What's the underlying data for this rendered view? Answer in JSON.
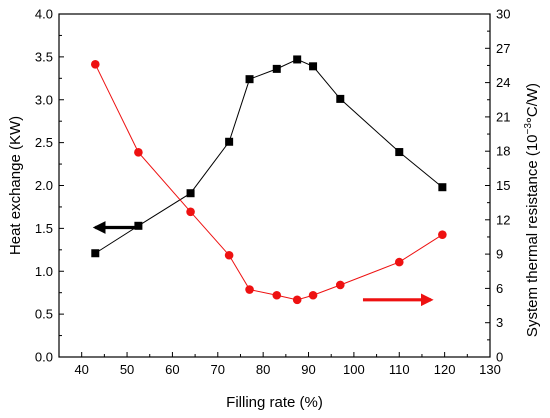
{
  "chart_data": {
    "type": "line",
    "xlabel": "Filling rate (%)",
    "ylabel_left": "Heat exchange (KW)",
    "ylabel_right_main": "System thermal resistance  (10",
    "ylabel_right_sup": "−3",
    "ylabel_right_unit": "°C/W)",
    "xlim": [
      35,
      130
    ],
    "ylim_left": [
      0,
      4.0
    ],
    "ylim_right": [
      0,
      30
    ],
    "xticks": [
      "40",
      "50",
      "60",
      "70",
      "80",
      "90",
      "100",
      "110",
      "120",
      "130"
    ],
    "yticks_left": [
      "0.0",
      "0.5",
      "1.0",
      "1.5",
      "2.0",
      "2.5",
      "3.0",
      "3.5",
      "4.0"
    ],
    "yticks_right": [
      "0",
      "3",
      "6",
      "9",
      "12",
      "15",
      "18",
      "21",
      "24",
      "27",
      "30"
    ],
    "grid": false,
    "series": [
      {
        "axis": "left",
        "color": "#000000",
        "marker": "square",
        "x": [
          43,
          52.5,
          64,
          72.5,
          77,
          83,
          87.5,
          91,
          97,
          110,
          119.5
        ],
        "y": [
          1.21,
          1.53,
          1.91,
          2.51,
          3.24,
          3.36,
          3.47,
          3.39,
          3.01,
          2.39,
          1.98
        ]
      },
      {
        "axis": "right",
        "color": "#ee1111",
        "marker": "circle",
        "x": [
          43,
          52.5,
          64,
          72.5,
          77,
          83,
          87.5,
          91,
          97,
          110,
          119.5
        ],
        "y": [
          25.6,
          17.9,
          12.7,
          8.9,
          5.9,
          5.4,
          5.0,
          5.4,
          6.3,
          8.3,
          10.7
        ]
      }
    ],
    "annotations": [
      {
        "type": "arrow",
        "direction": "left",
        "color": "#000000",
        "points_to": "left axis",
        "x": [
          43,
          52.5
        ],
        "y_left": 1.51
      },
      {
        "type": "arrow",
        "direction": "right",
        "color": "#ee1111",
        "points_to": "right axis",
        "x": [
          102,
          117
        ],
        "y_right": 5.0
      }
    ]
  }
}
